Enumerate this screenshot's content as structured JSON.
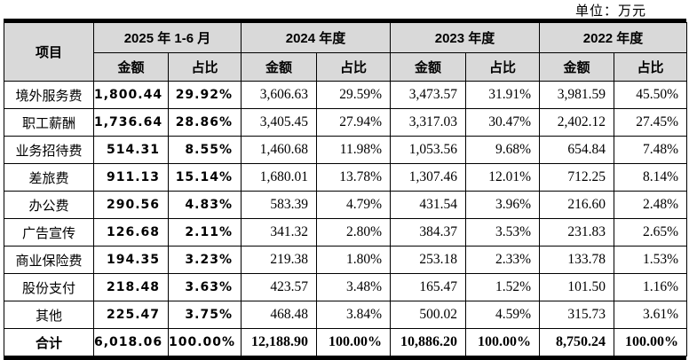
{
  "unit_label": "单位：万元",
  "colors": {
    "header_bg": "#d9d9d9",
    "border": "#000000",
    "text": "#000000"
  },
  "table": {
    "item_header": "项目",
    "col_groups": [
      {
        "label": "2025 年 1-6 月"
      },
      {
        "label": "2024 年度"
      },
      {
        "label": "2023 年度"
      },
      {
        "label": "2022 年度"
      }
    ],
    "sub_headers": [
      "金额",
      "占比"
    ],
    "rows": [
      {
        "label": "境外服务费",
        "values": [
          "1,800.44",
          "29.92%",
          "3,606.63",
          "29.59%",
          "3,473.57",
          "31.91%",
          "3,981.59",
          "45.50%"
        ]
      },
      {
        "label": "职工薪酬",
        "values": [
          "1,736.64",
          "28.86%",
          "3,405.45",
          "27.94%",
          "3,317.03",
          "30.47%",
          "2,402.12",
          "27.45%"
        ]
      },
      {
        "label": "业务招待费",
        "values": [
          "514.31",
          "8.55%",
          "1,460.68",
          "11.98%",
          "1,053.56",
          "9.68%",
          "654.84",
          "7.48%"
        ]
      },
      {
        "label": "差旅费",
        "values": [
          "911.13",
          "15.14%",
          "1,680.01",
          "13.78%",
          "1,307.46",
          "12.01%",
          "712.25",
          "8.14%"
        ]
      },
      {
        "label": "办公费",
        "values": [
          "290.56",
          "4.83%",
          "583.39",
          "4.79%",
          "431.54",
          "3.96%",
          "216.60",
          "2.48%"
        ]
      },
      {
        "label": "广告宣传",
        "values": [
          "126.68",
          "2.11%",
          "341.32",
          "2.80%",
          "384.37",
          "3.53%",
          "231.83",
          "2.65%"
        ]
      },
      {
        "label": "商业保险费",
        "values": [
          "194.35",
          "3.23%",
          "219.38",
          "1.80%",
          "253.18",
          "2.33%",
          "133.78",
          "1.53%"
        ]
      },
      {
        "label": "股份支付",
        "values": [
          "218.48",
          "3.63%",
          "423.57",
          "3.48%",
          "165.47",
          "1.52%",
          "101.50",
          "1.16%"
        ]
      },
      {
        "label": "其他",
        "values": [
          "225.47",
          "3.75%",
          "468.48",
          "3.84%",
          "500.02",
          "4.59%",
          "315.73",
          "3.61%"
        ]
      }
    ],
    "total_row": {
      "label": "合计",
      "values": [
        "6,018.06",
        "100.00%",
        "12,188.90",
        "100.00%",
        "10,886.20",
        "100.00%",
        "8,750.24",
        "100.00%"
      ]
    }
  }
}
